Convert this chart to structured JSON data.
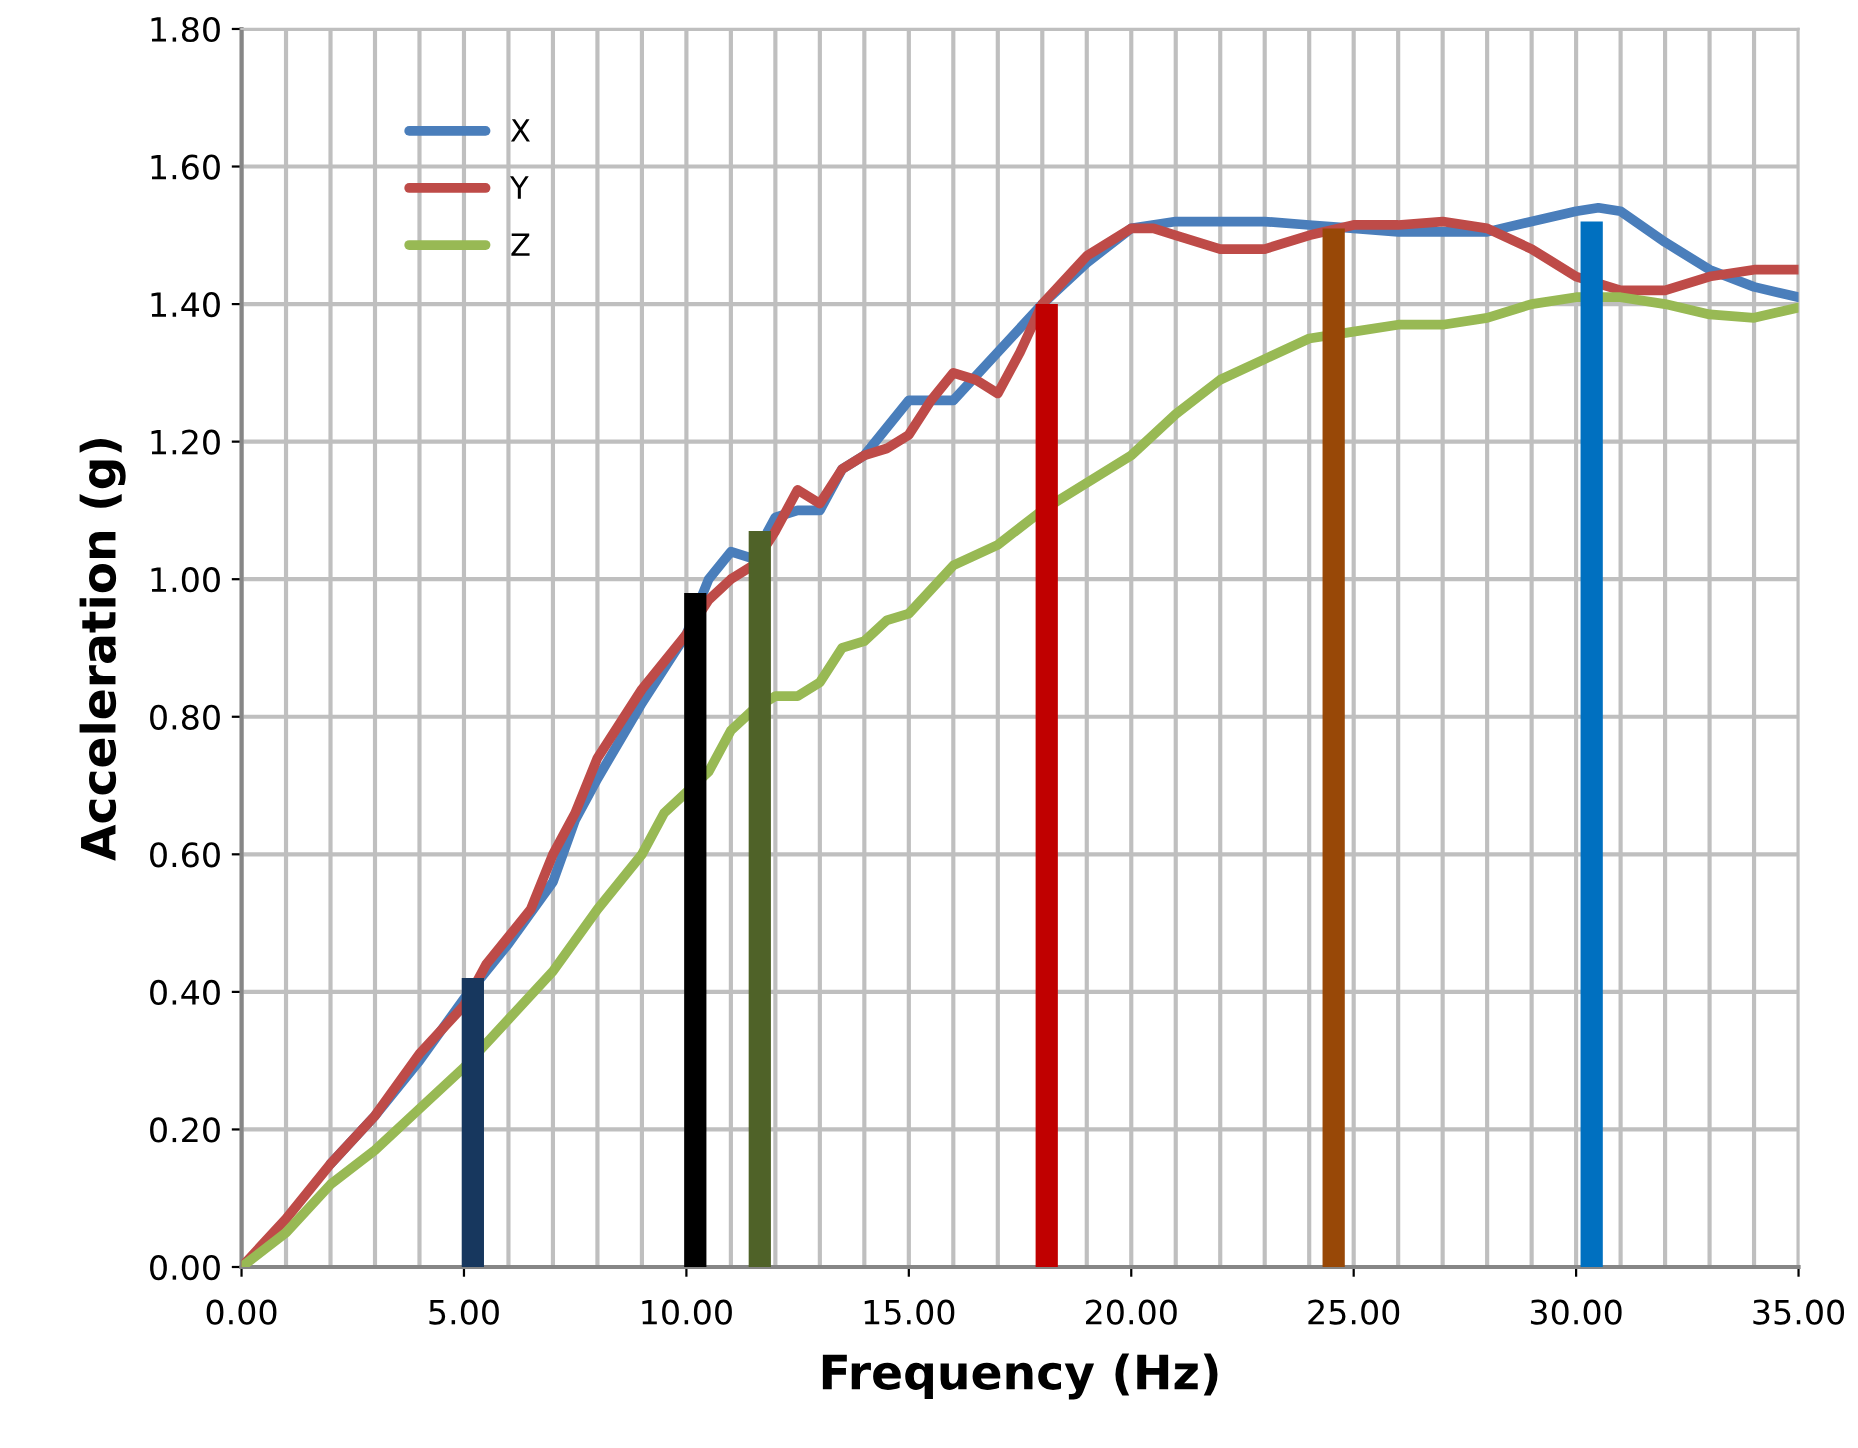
{
  "chart_data": {
    "type": "line",
    "xlabel": "Frequency (Hz)",
    "ylabel": "Acceleration (g)",
    "xlim": [
      0,
      35
    ],
    "ylim": [
      0,
      1.8
    ],
    "xticks": [
      {
        "value": 0,
        "label": "0.00"
      },
      {
        "value": 1,
        "label": null
      },
      {
        "value": 2,
        "label": null
      },
      {
        "value": 3,
        "label": null
      },
      {
        "value": 4,
        "label": null
      },
      {
        "value": 5,
        "label": "5.00"
      },
      {
        "value": 6,
        "label": null
      },
      {
        "value": 7,
        "label": null
      },
      {
        "value": 8,
        "label": null
      },
      {
        "value": 9,
        "label": null
      },
      {
        "value": 10,
        "label": "10.00"
      },
      {
        "value": 11,
        "label": null
      },
      {
        "value": 12,
        "label": null
      },
      {
        "value": 13,
        "label": null
      },
      {
        "value": 14,
        "label": null
      },
      {
        "value": 15,
        "label": "15.00"
      },
      {
        "value": 16,
        "label": null
      },
      {
        "value": 17,
        "label": null
      },
      {
        "value": 18,
        "label": null
      },
      {
        "value": 19,
        "label": null
      },
      {
        "value": 20,
        "label": "20.00"
      },
      {
        "value": 21,
        "label": null
      },
      {
        "value": 22,
        "label": null
      },
      {
        "value": 23,
        "label": null
      },
      {
        "value": 24,
        "label": null
      },
      {
        "value": 25,
        "label": "25.00"
      },
      {
        "value": 26,
        "label": null
      },
      {
        "value": 27,
        "label": null
      },
      {
        "value": 28,
        "label": null
      },
      {
        "value": 29,
        "label": null
      },
      {
        "value": 30,
        "label": "30.00"
      },
      {
        "value": 31,
        "label": null
      },
      {
        "value": 32,
        "label": null
      },
      {
        "value": 33,
        "label": null
      },
      {
        "value": 34,
        "label": null
      },
      {
        "value": 35,
        "label": "35.00"
      }
    ],
    "yticks": [
      {
        "value": 0,
        "label": "0.00"
      },
      {
        "value": 0.2,
        "label": "0.20"
      },
      {
        "value": 0.4,
        "label": "0.40"
      },
      {
        "value": 0.6,
        "label": "0.60"
      },
      {
        "value": 0.8,
        "label": "0.80"
      },
      {
        "value": 1.0,
        "label": "1.00"
      },
      {
        "value": 1.2,
        "label": "1.20"
      },
      {
        "value": 1.4,
        "label": "1.40"
      },
      {
        "value": 1.6,
        "label": "1.60"
      },
      {
        "value": 1.8,
        "label": "1.80"
      }
    ],
    "grid": true,
    "legend": "top left",
    "marker": "none",
    "line_style": "solid",
    "series": [
      {
        "name": "X",
        "color": "#4a7ebb",
        "x": [
          2,
          3,
          4,
          5,
          5.5,
          6,
          7,
          7.5,
          8,
          9,
          10,
          10.5,
          11,
          11.5,
          12,
          12.5,
          13,
          13.5,
          14,
          15,
          15.5,
          16,
          17,
          18,
          19,
          20,
          21,
          22,
          23,
          24,
          25,
          26,
          27,
          28,
          29,
          30,
          30.5,
          31,
          32,
          33,
          34,
          35
        ],
        "values": [
          0.15,
          0.22,
          0.3,
          0.39,
          0.43,
          0.47,
          0.56,
          0.65,
          0.71,
          0.82,
          0.92,
          1.0,
          1.04,
          1.03,
          1.09,
          1.1,
          1.1,
          1.16,
          1.18,
          1.26,
          1.26,
          1.26,
          1.33,
          1.4,
          1.46,
          1.51,
          1.52,
          1.52,
          1.52,
          1.515,
          1.51,
          1.505,
          1.505,
          1.505,
          1.52,
          1.535,
          1.54,
          1.535,
          1.49,
          1.45,
          1.425,
          1.41
        ]
      },
      {
        "name": "Y",
        "color": "#be4b48",
        "x": [
          0,
          1,
          2,
          3,
          4,
          5,
          5.5,
          6,
          6.5,
          7,
          7.5,
          8,
          9,
          10,
          10.5,
          11,
          11.5,
          12,
          12.5,
          13,
          13.5,
          14,
          14.5,
          15,
          15.5,
          16,
          16.5,
          17,
          17.5,
          18,
          19,
          20,
          20.5,
          21,
          22,
          23,
          24,
          25,
          26,
          27,
          28,
          29,
          30,
          31,
          32,
          33,
          34,
          35
        ],
        "values": [
          0,
          0.07,
          0.15,
          0.22,
          0.31,
          0.38,
          0.44,
          0.48,
          0.52,
          0.6,
          0.66,
          0.74,
          0.84,
          0.92,
          0.97,
          1.0,
          1.02,
          1.07,
          1.13,
          1.11,
          1.16,
          1.18,
          1.19,
          1.21,
          1.26,
          1.3,
          1.29,
          1.27,
          1.33,
          1.4,
          1.47,
          1.51,
          1.51,
          1.5,
          1.48,
          1.48,
          1.5,
          1.515,
          1.515,
          1.52,
          1.51,
          1.48,
          1.44,
          1.42,
          1.42,
          1.44,
          1.45,
          1.45
        ]
      },
      {
        "name": "Z",
        "color": "#98b954",
        "x": [
          0,
          1,
          2,
          3,
          4,
          5,
          6,
          7,
          8,
          9,
          9.5,
          10,
          10.5,
          11,
          11.5,
          12,
          12.5,
          13,
          13.5,
          14,
          14.5,
          15,
          16,
          17,
          18,
          19,
          20,
          21,
          22,
          23,
          24,
          25,
          26,
          27,
          28,
          29,
          30,
          31,
          32,
          33,
          34,
          35
        ],
        "values": [
          0,
          0.05,
          0.12,
          0.17,
          0.23,
          0.29,
          0.36,
          0.43,
          0.52,
          0.6,
          0.66,
          0.69,
          0.72,
          0.78,
          0.81,
          0.83,
          0.83,
          0.85,
          0.9,
          0.91,
          0.94,
          0.95,
          1.02,
          1.05,
          1.1,
          1.14,
          1.18,
          1.24,
          1.29,
          1.32,
          1.35,
          1.36,
          1.37,
          1.37,
          1.38,
          1.4,
          1.41,
          1.41,
          1.4,
          1.385,
          1.38,
          1.395
        ]
      },
      {
        "type": "bar",
        "x": [
          5.2,
          10.2,
          11.65,
          18.1,
          24.55,
          30.35
        ],
        "values": [
          0.42,
          0.98,
          1.07,
          1.4,
          1.51,
          1.52
        ],
        "colors": [
          "#17375e",
          "#000000",
          "#4f6228",
          "#c00000",
          "#984807",
          "#0070c0"
        ]
      }
    ]
  }
}
